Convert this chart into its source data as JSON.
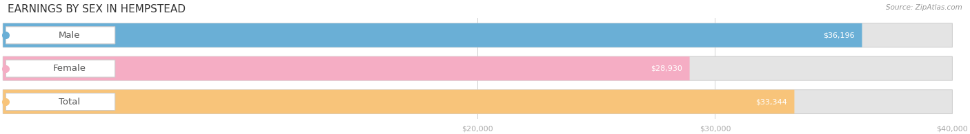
{
  "title": "EARNINGS BY SEX IN HEMPSTEAD",
  "source": "Source: ZipAtlas.com",
  "categories": [
    "Male",
    "Female",
    "Total"
  ],
  "values": [
    36196,
    28930,
    33344
  ],
  "bar_colors": [
    "#6aafd6",
    "#f5adc4",
    "#f8c47a"
  ],
  "track_color": "#e4e4e4",
  "track_border_color": "#d0d0d0",
  "xmin": 0,
  "xmax": 40000,
  "xticks": [
    20000,
    30000,
    40000
  ],
  "xtick_labels": [
    "$20,000",
    "$30,000",
    "$40,000"
  ],
  "figsize": [
    14.06,
    1.95
  ],
  "dpi": 100,
  "title_fontsize": 11,
  "label_fontsize": 9.5,
  "value_fontsize": 8,
  "source_fontsize": 7.5,
  "background_color": "#ffffff",
  "text_color": "#555555",
  "value_text_color_inside": "#ffffff",
  "value_text_color_outside": "#888888",
  "grid_color": "#d0d0d0",
  "tick_color": "#aaaaaa",
  "pill_border_color": "#cccccc"
}
